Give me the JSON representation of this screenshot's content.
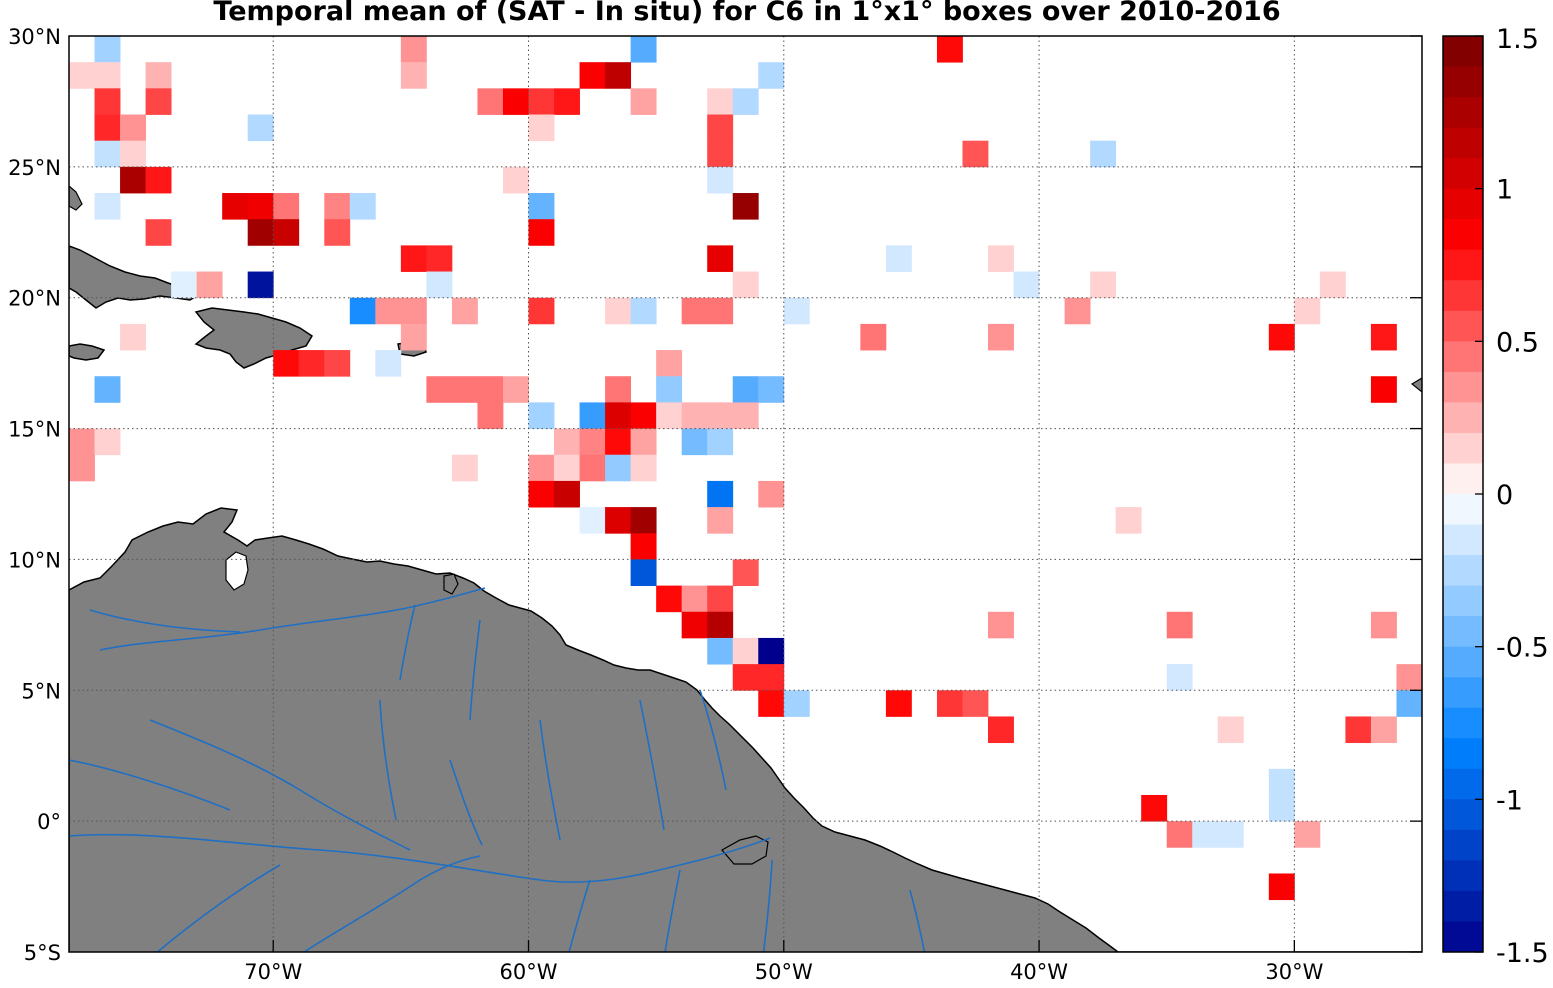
{
  "title": "Temporal mean of (SAT - In situ) for C6 in 1°x1° boxes over 2010-2016",
  "colors": {
    "land": "#808080",
    "coastline": "#000000",
    "rivers": "#1f6fc4",
    "grid": "#555555"
  },
  "chart_data": {
    "type": "heatmap",
    "title": "Temporal mean of (SAT - In situ) for C6 in 1°x1° boxes over 2010-2016",
    "xlim_lon": [
      -78,
      -25
    ],
    "ylim_lat": [
      -5,
      30
    ],
    "x_ticks": [
      {
        "value": -70,
        "label": "70°W"
      },
      {
        "value": -60,
        "label": "60°W"
      },
      {
        "value": -50,
        "label": "50°W"
      },
      {
        "value": -40,
        "label": "40°W"
      },
      {
        "value": -30,
        "label": "30°W"
      }
    ],
    "y_ticks": [
      {
        "value": 30,
        "label": "30°N"
      },
      {
        "value": 25,
        "label": "25°N"
      },
      {
        "value": 20,
        "label": "20°N"
      },
      {
        "value": 15,
        "label": "15°N"
      },
      {
        "value": 10,
        "label": "10°N"
      },
      {
        "value": 5,
        "label": "5°N"
      },
      {
        "value": 0,
        "label": "0°"
      },
      {
        "value": -5,
        "label": "5°S"
      }
    ],
    "grid": true,
    "colorbar": {
      "range": [
        -1.5,
        1.5
      ],
      "levels": 30,
      "tick_labels": [
        "1.5",
        "1",
        "0.5",
        "0",
        "-0.5",
        "-1",
        "-1.5"
      ],
      "tick_values": [
        1.5,
        1,
        0.5,
        0,
        -0.5,
        -1,
        -1.5
      ],
      "position": "right"
    },
    "cells": [
      {
        "lon": -77,
        "lat": 29,
        "v": -0.3
      },
      {
        "lon": -65,
        "lat": 29,
        "v": 0.35
      },
      {
        "lon": -56,
        "lat": 29,
        "v": -0.55
      },
      {
        "lon": -44,
        "lat": 29,
        "v": 0.8
      },
      {
        "lon": -78,
        "lat": 28,
        "v": 0.15
      },
      {
        "lon": -77,
        "lat": 28,
        "v": 0.15
      },
      {
        "lon": -75,
        "lat": 28,
        "v": 0.25
      },
      {
        "lon": -65,
        "lat": 28,
        "v": 0.25
      },
      {
        "lon": -58,
        "lat": 28,
        "v": 0.85
      },
      {
        "lon": -57,
        "lat": 28,
        "v": 1.15
      },
      {
        "lon": -51,
        "lat": 28,
        "v": -0.25
      },
      {
        "lon": -77,
        "lat": 27,
        "v": 0.65
      },
      {
        "lon": -75,
        "lat": 27,
        "v": 0.6
      },
      {
        "lon": -62,
        "lat": 27,
        "v": 0.45
      },
      {
        "lon": -61,
        "lat": 27,
        "v": 0.85
      },
      {
        "lon": -60,
        "lat": 27,
        "v": 0.65
      },
      {
        "lon": -59,
        "lat": 27,
        "v": 0.75
      },
      {
        "lon": -56,
        "lat": 27,
        "v": 0.3
      },
      {
        "lon": -53,
        "lat": 27,
        "v": 0.15
      },
      {
        "lon": -52,
        "lat": 27,
        "v": -0.25
      },
      {
        "lon": -77,
        "lat": 26,
        "v": 0.7
      },
      {
        "lon": -76,
        "lat": 26,
        "v": 0.35
      },
      {
        "lon": -71,
        "lat": 26,
        "v": -0.25
      },
      {
        "lon": -60,
        "lat": 26,
        "v": 0.15
      },
      {
        "lon": -53,
        "lat": 26,
        "v": 0.6
      },
      {
        "lon": -77,
        "lat": 25,
        "v": -0.2
      },
      {
        "lon": -76,
        "lat": 25,
        "v": 0.15
      },
      {
        "lon": -53,
        "lat": 25,
        "v": 0.6
      },
      {
        "lon": -43,
        "lat": 25,
        "v": 0.55
      },
      {
        "lon": -38,
        "lat": 25,
        "v": -0.25
      },
      {
        "lon": -76,
        "lat": 24,
        "v": 1.25
      },
      {
        "lon": -75,
        "lat": 24,
        "v": 0.75
      },
      {
        "lon": -61,
        "lat": 24,
        "v": 0.15
      },
      {
        "lon": -53,
        "lat": 24,
        "v": -0.15
      },
      {
        "lon": -77,
        "lat": 23,
        "v": -0.15
      },
      {
        "lon": -72,
        "lat": 23,
        "v": 0.95
      },
      {
        "lon": -71,
        "lat": 23,
        "v": 0.9
      },
      {
        "lon": -70,
        "lat": 23,
        "v": 0.45
      },
      {
        "lon": -68,
        "lat": 23,
        "v": 0.4
      },
      {
        "lon": -67,
        "lat": 23,
        "v": -0.25
      },
      {
        "lon": -60,
        "lat": 23,
        "v": -0.5
      },
      {
        "lon": -52,
        "lat": 23,
        "v": 1.35
      },
      {
        "lon": -75,
        "lat": 22,
        "v": 0.6
      },
      {
        "lon": -71,
        "lat": 22,
        "v": 1.3
      },
      {
        "lon": -70,
        "lat": 22,
        "v": 1.1
      },
      {
        "lon": -68,
        "lat": 22,
        "v": 0.55
      },
      {
        "lon": -60,
        "lat": 22,
        "v": 0.85
      },
      {
        "lon": -65,
        "lat": 21,
        "v": 0.75
      },
      {
        "lon": -64,
        "lat": 21,
        "v": 0.7
      },
      {
        "lon": -53,
        "lat": 21,
        "v": 0.95
      },
      {
        "lon": -46,
        "lat": 21,
        "v": -0.15
      },
      {
        "lon": -42,
        "lat": 21,
        "v": 0.15
      },
      {
        "lon": -74,
        "lat": 20,
        "v": -0.1
      },
      {
        "lon": -73,
        "lat": 20,
        "v": 0.3
      },
      {
        "lon": -71,
        "lat": 20,
        "v": -1.4
      },
      {
        "lon": -64,
        "lat": 20,
        "v": -0.15
      },
      {
        "lon": -52,
        "lat": 20,
        "v": 0.15
      },
      {
        "lon": -41,
        "lat": 20,
        "v": -0.15
      },
      {
        "lon": -38,
        "lat": 20,
        "v": 0.15
      },
      {
        "lon": -29,
        "lat": 20,
        "v": 0.15
      },
      {
        "lon": -67,
        "lat": 19,
        "v": -0.75
      },
      {
        "lon": -66,
        "lat": 19,
        "v": 0.35
      },
      {
        "lon": -65,
        "lat": 19,
        "v": 0.35
      },
      {
        "lon": -63,
        "lat": 19,
        "v": 0.3
      },
      {
        "lon": -60,
        "lat": 19,
        "v": 0.65
      },
      {
        "lon": -57,
        "lat": 19,
        "v": 0.15
      },
      {
        "lon": -56,
        "lat": 19,
        "v": -0.25
      },
      {
        "lon": -54,
        "lat": 19,
        "v": 0.45
      },
      {
        "lon": -53,
        "lat": 19,
        "v": 0.45
      },
      {
        "lon": -50,
        "lat": 19,
        "v": -0.15
      },
      {
        "lon": -39,
        "lat": 19,
        "v": 0.35
      },
      {
        "lon": -30,
        "lat": 19,
        "v": 0.15
      },
      {
        "lon": -76,
        "lat": 18,
        "v": 0.15
      },
      {
        "lon": -65,
        "lat": 18,
        "v": 0.3
      },
      {
        "lon": -47,
        "lat": 18,
        "v": 0.45
      },
      {
        "lon": -42,
        "lat": 18,
        "v": 0.35
      },
      {
        "lon": -31,
        "lat": 18,
        "v": 0.8
      },
      {
        "lon": -27,
        "lat": 18,
        "v": 0.75
      },
      {
        "lon": -70,
        "lat": 17,
        "v": 0.8
      },
      {
        "lon": -69,
        "lat": 17,
        "v": 0.7
      },
      {
        "lon": -68,
        "lat": 17,
        "v": 0.6
      },
      {
        "lon": -66,
        "lat": 17,
        "v": -0.15
      },
      {
        "lon": -55,
        "lat": 17,
        "v": 0.3
      },
      {
        "lon": -77,
        "lat": 16,
        "v": -0.5
      },
      {
        "lon": -64,
        "lat": 16,
        "v": 0.45
      },
      {
        "lon": -63,
        "lat": 16,
        "v": 0.45
      },
      {
        "lon": -62,
        "lat": 16,
        "v": 0.45
      },
      {
        "lon": -61,
        "lat": 16,
        "v": 0.3
      },
      {
        "lon": -57,
        "lat": 16,
        "v": 0.45
      },
      {
        "lon": -55,
        "lat": 16,
        "v": -0.35
      },
      {
        "lon": -52,
        "lat": 16,
        "v": -0.55
      },
      {
        "lon": -51,
        "lat": 16,
        "v": -0.45
      },
      {
        "lon": -27,
        "lat": 16,
        "v": 0.85
      },
      {
        "lon": -62,
        "lat": 15,
        "v": 0.45
      },
      {
        "lon": -60,
        "lat": 15,
        "v": -0.3
      },
      {
        "lon": -58,
        "lat": 15,
        "v": -0.65
      },
      {
        "lon": -57,
        "lat": 15,
        "v": 1.0
      },
      {
        "lon": -56,
        "lat": 15,
        "v": 0.85
      },
      {
        "lon": -55,
        "lat": 15,
        "v": 0.15
      },
      {
        "lon": -54,
        "lat": 15,
        "v": 0.25
      },
      {
        "lon": -53,
        "lat": 15,
        "v": 0.25
      },
      {
        "lon": -52,
        "lat": 15,
        "v": 0.25
      },
      {
        "lon": -78,
        "lat": 14,
        "v": 0.35
      },
      {
        "lon": -77,
        "lat": 14,
        "v": 0.15
      },
      {
        "lon": -59,
        "lat": 14,
        "v": 0.25
      },
      {
        "lon": -58,
        "lat": 14,
        "v": 0.4
      },
      {
        "lon": -57,
        "lat": 14,
        "v": 0.8
      },
      {
        "lon": -56,
        "lat": 14,
        "v": 0.3
      },
      {
        "lon": -54,
        "lat": 14,
        "v": -0.45
      },
      {
        "lon": -53,
        "lat": 14,
        "v": -0.3
      },
      {
        "lon": -78,
        "lat": 13,
        "v": 0.35
      },
      {
        "lon": -63,
        "lat": 13,
        "v": 0.15
      },
      {
        "lon": -60,
        "lat": 13,
        "v": 0.35
      },
      {
        "lon": -59,
        "lat": 13,
        "v": 0.15
      },
      {
        "lon": -58,
        "lat": 13,
        "v": 0.45
      },
      {
        "lon": -57,
        "lat": 13,
        "v": -0.35
      },
      {
        "lon": -56,
        "lat": 13,
        "v": 0.15
      },
      {
        "lon": -60,
        "lat": 12,
        "v": 0.85
      },
      {
        "lon": -59,
        "lat": 12,
        "v": 1.1
      },
      {
        "lon": -53,
        "lat": 12,
        "v": -0.9
      },
      {
        "lon": -51,
        "lat": 12,
        "v": 0.35
      },
      {
        "lon": -58,
        "lat": 11,
        "v": -0.1
      },
      {
        "lon": -57,
        "lat": 11,
        "v": 1.0
      },
      {
        "lon": -56,
        "lat": 11,
        "v": 1.3
      },
      {
        "lon": -53,
        "lat": 11,
        "v": 0.3
      },
      {
        "lon": -37,
        "lat": 11,
        "v": 0.15
      },
      {
        "lon": -56,
        "lat": 10,
        "v": 0.85
      },
      {
        "lon": -56,
        "lat": 9,
        "v": -1.05
      },
      {
        "lon": -52,
        "lat": 9,
        "v": 0.55
      },
      {
        "lon": -55,
        "lat": 8,
        "v": 0.8
      },
      {
        "lon": -54,
        "lat": 8,
        "v": 0.35
      },
      {
        "lon": -53,
        "lat": 8,
        "v": 0.6
      },
      {
        "lon": -54,
        "lat": 7,
        "v": 0.9
      },
      {
        "lon": -53,
        "lat": 7,
        "v": 1.2
      },
      {
        "lon": -42,
        "lat": 7,
        "v": 0.35
      },
      {
        "lon": -35,
        "lat": 7,
        "v": 0.45
      },
      {
        "lon": -27,
        "lat": 7,
        "v": 0.35
      },
      {
        "lon": -53,
        "lat": 6,
        "v": -0.45
      },
      {
        "lon": -52,
        "lat": 6,
        "v": 0.15
      },
      {
        "lon": -51,
        "lat": 6,
        "v": -1.5
      },
      {
        "lon": -52,
        "lat": 5,
        "v": 0.7
      },
      {
        "lon": -51,
        "lat": 5,
        "v": 0.7
      },
      {
        "lon": -35,
        "lat": 5,
        "v": -0.15
      },
      {
        "lon": -26,
        "lat": 5,
        "v": 0.35
      },
      {
        "lon": -51,
        "lat": 4,
        "v": 0.8
      },
      {
        "lon": -50,
        "lat": 4,
        "v": -0.3
      },
      {
        "lon": -46,
        "lat": 4,
        "v": 0.8
      },
      {
        "lon": -44,
        "lat": 4,
        "v": 0.65
      },
      {
        "lon": -43,
        "lat": 4,
        "v": 0.55
      },
      {
        "lon": -26,
        "lat": 4,
        "v": -0.5
      },
      {
        "lon": -42,
        "lat": 3,
        "v": 0.7
      },
      {
        "lon": -33,
        "lat": 3,
        "v": 0.15
      },
      {
        "lon": -28,
        "lat": 3,
        "v": 0.65
      },
      {
        "lon": -27,
        "lat": 3,
        "v": 0.3
      },
      {
        "lon": -31,
        "lat": 1,
        "v": -0.2
      },
      {
        "lon": -36,
        "lat": 0,
        "v": 0.8
      },
      {
        "lon": -31,
        "lat": 0,
        "v": -0.2
      },
      {
        "lon": -35,
        "lat": -1,
        "v": 0.45
      },
      {
        "lon": -34,
        "lat": -1,
        "v": -0.15
      },
      {
        "lon": -33,
        "lat": -1,
        "v": -0.15
      },
      {
        "lon": -30,
        "lat": -1,
        "v": 0.3
      },
      {
        "lon": -31,
        "lat": -3,
        "v": 0.85
      }
    ]
  }
}
